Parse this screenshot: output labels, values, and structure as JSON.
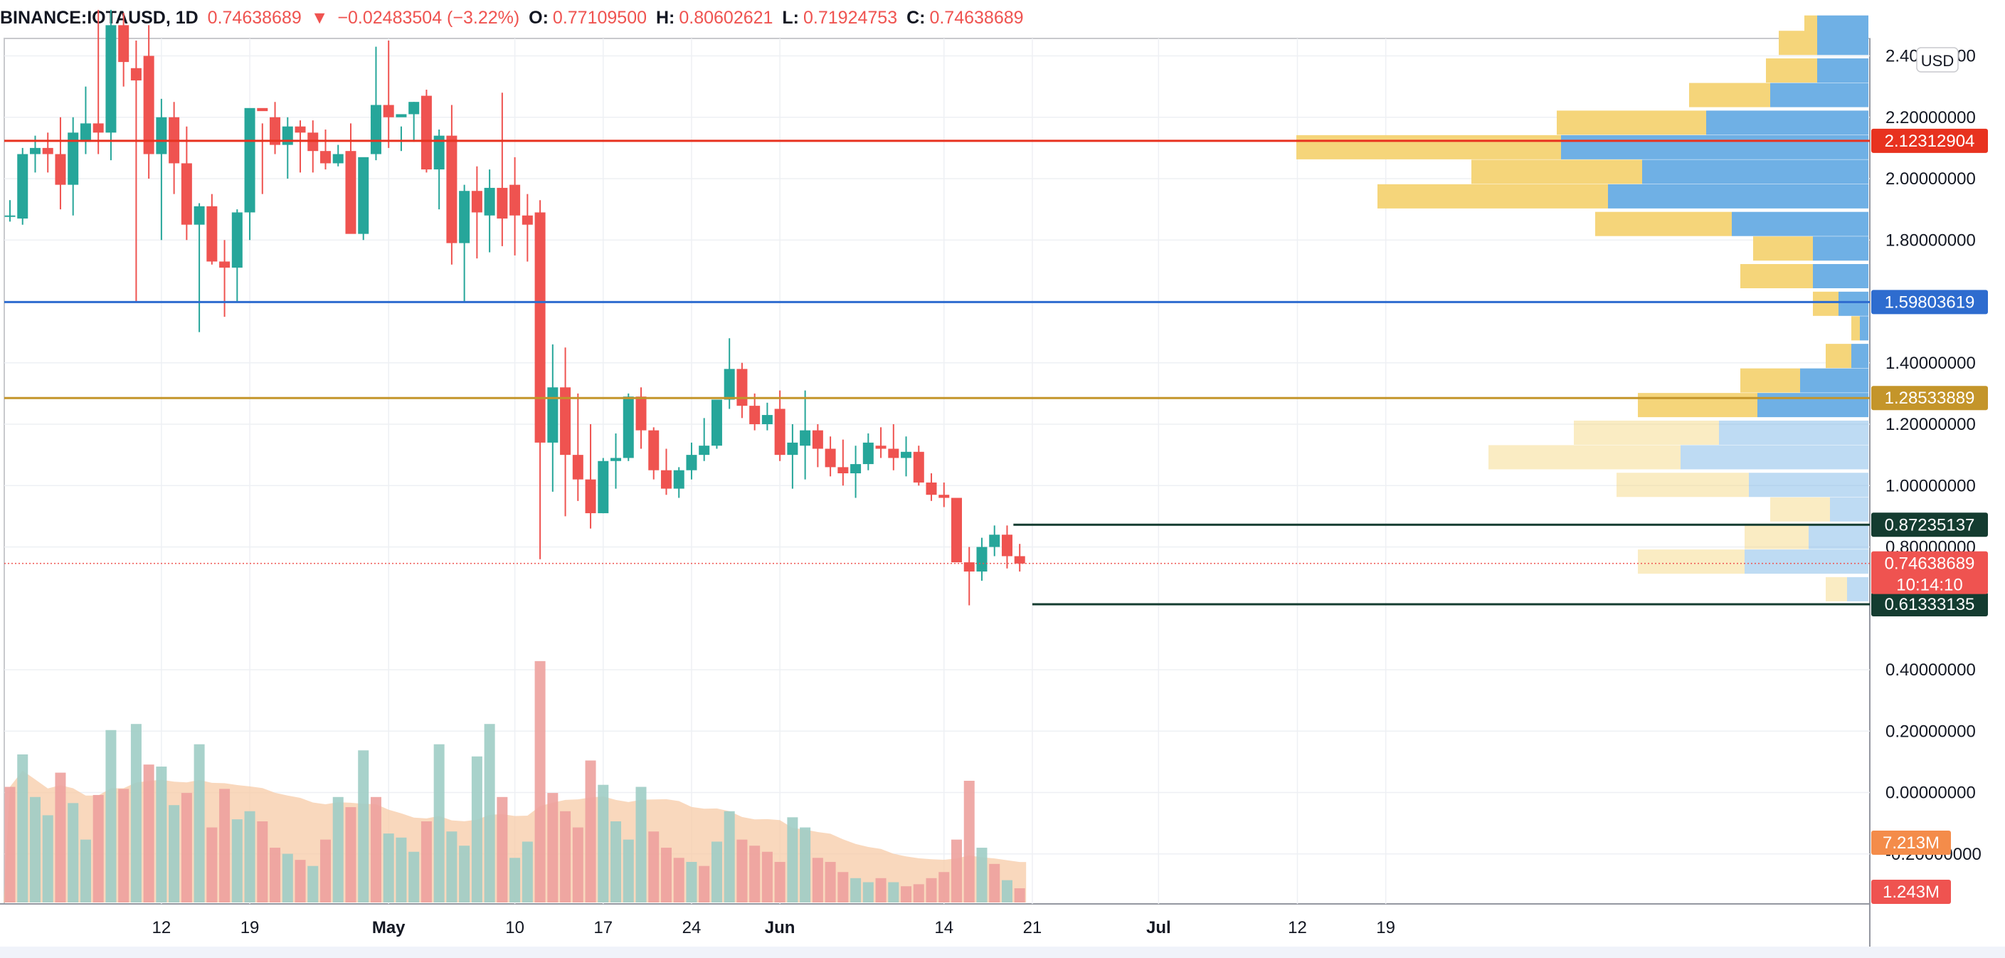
{
  "header": {
    "symbol": "BINANCE:IOTAUSD, 1D",
    "last": "0.74638689",
    "arrow": "▼",
    "change": "−0.02483504 (−3.22%)",
    "open_label": "O:",
    "open": "0.77109500",
    "high_label": "H:",
    "high": "0.80602621",
    "low_label": "L:",
    "low": "0.71924753",
    "close_label": "C:",
    "close": "0.74638689"
  },
  "colors": {
    "up": "#26a69a",
    "down": "#ef5350",
    "vol_up": "#9fcdc5",
    "vol_down": "#eda19d",
    "vol_ma": "#f7cba7",
    "vp_up": "#6fb0e5",
    "vp_down": "#f5d57a",
    "line_red": "#e8321f",
    "line_blue": "#2e6ccf",
    "line_gold": "#c4952a",
    "line_dark": "#143c30"
  },
  "chart_data": {
    "type": "candlestick",
    "currency_badge": "USD",
    "y_ticks": [
      "2.40000000",
      "2.20000000",
      "2.00000000",
      "1.80000000",
      "1.40000000",
      "1.20000000",
      "1.00000000",
      "0.80000000",
      "0.40000000",
      "0.20000000",
      "0.00000000",
      "-0.20000000"
    ],
    "y_tick_values": [
      2.4,
      2.2,
      2.0,
      1.8,
      1.4,
      1.2,
      1.0,
      0.8,
      0.4,
      0.2,
      0.0,
      -0.2
    ],
    "x_ticks": [
      {
        "label": "12",
        "day": 12
      },
      {
        "label": "19",
        "day": 19
      },
      {
        "label": "May",
        "day": 30
      },
      {
        "label": "10",
        "day": 40
      },
      {
        "label": "17",
        "day": 47
      },
      {
        "label": "24",
        "day": 54
      },
      {
        "label": "Jun",
        "day": 61
      },
      {
        "label": "14",
        "day": 74
      },
      {
        "label": "21",
        "day": 81
      },
      {
        "label": "Jul",
        "day": 91
      },
      {
        "label": "12",
        "day": 102
      },
      {
        "label": "19",
        "day": 109
      }
    ],
    "candles_ohlc": [
      [
        1.88,
        1.93,
        1.86,
        1.88
      ],
      [
        1.87,
        2.1,
        1.85,
        2.08
      ],
      [
        2.08,
        2.14,
        2.02,
        2.1
      ],
      [
        2.1,
        2.15,
        2.02,
        2.08
      ],
      [
        2.08,
        2.2,
        1.9,
        1.98
      ],
      [
        1.98,
        2.2,
        1.88,
        2.15
      ],
      [
        2.12,
        2.3,
        2.08,
        2.18
      ],
      [
        2.18,
        2.55,
        2.08,
        2.15
      ],
      [
        2.15,
        2.55,
        2.06,
        2.5
      ],
      [
        2.5,
        2.54,
        2.3,
        2.38
      ],
      [
        2.36,
        2.45,
        1.6,
        2.32
      ],
      [
        2.4,
        2.5,
        2.0,
        2.08
      ],
      [
        2.08,
        2.26,
        1.8,
        2.2
      ],
      [
        2.2,
        2.25,
        1.95,
        2.05
      ],
      [
        2.05,
        2.17,
        1.8,
        1.85
      ],
      [
        1.85,
        1.92,
        1.5,
        1.91
      ],
      [
        1.91,
        1.95,
        1.72,
        1.73
      ],
      [
        1.73,
        1.8,
        1.55,
        1.71
      ],
      [
        1.71,
        1.9,
        1.6,
        1.89
      ],
      [
        1.89,
        2.14,
        1.8,
        2.23
      ],
      [
        2.23,
        2.18,
        1.95,
        2.22
      ],
      [
        2.2,
        2.25,
        2.08,
        2.11
      ],
      [
        2.11,
        2.2,
        2.0,
        2.17
      ],
      [
        2.17,
        2.19,
        2.02,
        2.15
      ],
      [
        2.15,
        2.19,
        2.02,
        2.09
      ],
      [
        2.09,
        2.16,
        2.03,
        2.05
      ],
      [
        2.05,
        2.11,
        2.04,
        2.08
      ],
      [
        2.09,
        2.18,
        2.0,
        1.82
      ],
      [
        1.82,
        2.06,
        1.8,
        2.07
      ],
      [
        2.08,
        2.43,
        2.06,
        2.24
      ],
      [
        2.24,
        2.45,
        2.1,
        2.2
      ],
      [
        2.2,
        2.17,
        2.09,
        2.21
      ],
      [
        2.21,
        2.25,
        2.12,
        2.25
      ],
      [
        2.27,
        2.29,
        2.02,
        2.03
      ],
      [
        2.03,
        2.16,
        1.9,
        2.14
      ],
      [
        2.14,
        2.24,
        1.72,
        1.79
      ],
      [
        1.79,
        1.98,
        1.6,
        1.96
      ],
      [
        1.96,
        2.04,
        1.74,
        1.89
      ],
      [
        1.88,
        2.03,
        1.76,
        1.97
      ],
      [
        1.97,
        2.28,
        1.78,
        1.87
      ],
      [
        1.98,
        2.07,
        1.75,
        1.88
      ],
      [
        1.88,
        1.95,
        1.73,
        1.85
      ],
      [
        1.89,
        1.93,
        0.76,
        1.14
      ],
      [
        1.14,
        1.46,
        0.98,
        1.32
      ],
      [
        1.32,
        1.45,
        0.9,
        1.1
      ],
      [
        1.1,
        1.3,
        0.95,
        1.02
      ],
      [
        1.02,
        1.2,
        0.86,
        0.91
      ],
      [
        0.91,
        1.09,
        0.91,
        1.08
      ],
      [
        1.08,
        1.17,
        0.99,
        1.09
      ],
      [
        1.09,
        1.3,
        1.08,
        1.29
      ],
      [
        1.29,
        1.32,
        1.12,
        1.18
      ],
      [
        1.18,
        1.19,
        1.02,
        1.05
      ],
      [
        1.05,
        1.12,
        0.97,
        0.99
      ],
      [
        0.99,
        1.06,
        0.96,
        1.05
      ],
      [
        1.05,
        1.14,
        1.02,
        1.1
      ],
      [
        1.1,
        1.22,
        1.08,
        1.13
      ],
      [
        1.13,
        1.28,
        1.12,
        1.28
      ],
      [
        1.28,
        1.48,
        1.25,
        1.38
      ],
      [
        1.38,
        1.4,
        1.22,
        1.26
      ],
      [
        1.26,
        1.3,
        1.18,
        1.2
      ],
      [
        1.2,
        1.27,
        1.18,
        1.23
      ],
      [
        1.25,
        1.31,
        1.08,
        1.1
      ],
      [
        1.1,
        1.2,
        0.99,
        1.14
      ],
      [
        1.13,
        1.31,
        1.02,
        1.18
      ],
      [
        1.18,
        1.2,
        1.06,
        1.12
      ],
      [
        1.12,
        1.16,
        1.03,
        1.06
      ],
      [
        1.06,
        1.15,
        1.0,
        1.04
      ],
      [
        1.04,
        1.13,
        0.96,
        1.07
      ],
      [
        1.07,
        1.17,
        1.05,
        1.14
      ],
      [
        1.13,
        1.19,
        1.09,
        1.12
      ],
      [
        1.12,
        1.2,
        1.05,
        1.09
      ],
      [
        1.09,
        1.16,
        1.03,
        1.11
      ],
      [
        1.11,
        1.13,
        1.0,
        1.01
      ],
      [
        1.01,
        1.04,
        0.95,
        0.97
      ],
      [
        0.97,
        1.01,
        0.93,
        0.96
      ],
      [
        0.96,
        0.95,
        0.75,
        0.75
      ],
      [
        0.75,
        0.8,
        0.61,
        0.72
      ],
      [
        0.72,
        0.83,
        0.69,
        0.8
      ],
      [
        0.8,
        0.87,
        0.77,
        0.84
      ],
      [
        0.84,
        0.87,
        0.73,
        0.77
      ],
      [
        0.77,
        0.81,
        0.72,
        0.746
      ]
    ],
    "volume": [
      [
        57,
        "down"
      ],
      [
        73,
        "up"
      ],
      [
        52,
        "up"
      ],
      [
        43,
        "up"
      ],
      [
        64,
        "down"
      ],
      [
        49,
        "up"
      ],
      [
        31,
        "up"
      ],
      [
        53,
        "down"
      ],
      [
        85,
        "up"
      ],
      [
        56,
        "down"
      ],
      [
        88,
        "up"
      ],
      [
        68,
        "down"
      ],
      [
        67,
        "up"
      ],
      [
        48,
        "up"
      ],
      [
        54,
        "down"
      ],
      [
        78,
        "up"
      ],
      [
        37,
        "down"
      ],
      [
        56,
        "down"
      ],
      [
        41,
        "up"
      ],
      [
        45,
        "up"
      ],
      [
        40,
        "down"
      ],
      [
        27,
        "down"
      ],
      [
        24,
        "up"
      ],
      [
        21,
        "down"
      ],
      [
        18,
        "up"
      ],
      [
        31,
        "down"
      ],
      [
        52,
        "up"
      ],
      [
        47,
        "down"
      ],
      [
        75,
        "up"
      ],
      [
        52,
        "down"
      ],
      [
        34,
        "up"
      ],
      [
        32,
        "up"
      ],
      [
        25,
        "up"
      ],
      [
        40,
        "down"
      ],
      [
        78,
        "up"
      ],
      [
        35,
        "up"
      ],
      [
        28,
        "up"
      ],
      [
        72,
        "up"
      ],
      [
        88,
        "up"
      ],
      [
        52,
        "down"
      ],
      [
        22,
        "up"
      ],
      [
        30,
        "up"
      ],
      [
        119,
        "down"
      ],
      [
        54,
        "down"
      ],
      [
        45,
        "down"
      ],
      [
        37,
        "down"
      ],
      [
        70,
        "down"
      ],
      [
        58,
        "up"
      ],
      [
        40,
        "up"
      ],
      [
        31,
        "up"
      ],
      [
        57,
        "up"
      ],
      [
        35,
        "down"
      ],
      [
        27,
        "down"
      ],
      [
        22,
        "down"
      ],
      [
        20,
        "up"
      ],
      [
        18,
        "down"
      ],
      [
        30,
        "up"
      ],
      [
        45,
        "up"
      ],
      [
        31,
        "down"
      ],
      [
        28,
        "down"
      ],
      [
        25,
        "down"
      ],
      [
        20,
        "down"
      ],
      [
        42,
        "up"
      ],
      [
        37,
        "up"
      ],
      [
        22,
        "down"
      ],
      [
        20,
        "down"
      ],
      [
        15,
        "down"
      ],
      [
        12,
        "up"
      ],
      [
        10,
        "up"
      ],
      [
        12,
        "down"
      ],
      [
        10,
        "up"
      ],
      [
        8,
        "down"
      ],
      [
        9,
        "down"
      ],
      [
        12,
        "down"
      ],
      [
        15,
        "down"
      ],
      [
        31,
        "down"
      ],
      [
        60,
        "down"
      ],
      [
        27,
        "up"
      ],
      [
        19,
        "down"
      ],
      [
        11,
        "up"
      ],
      [
        7,
        "down"
      ]
    ],
    "volume_badges": [
      {
        "label": "7.213M",
        "color": "#f48c4a"
      },
      {
        "label": "1.243M",
        "color": "#ef5350"
      }
    ],
    "horizontal_lines": [
      {
        "price": 2.12312904,
        "label": "2.12312904",
        "color": "#e8321f",
        "x_start_day": 0
      },
      {
        "price": 1.59803619,
        "label": "1.59803619",
        "color": "#2e6ccf",
        "x_start_day": 0
      },
      {
        "price": 1.28533889,
        "label": "1.28533889",
        "color": "#c4952a",
        "x_start_day": 0
      },
      {
        "price": 0.87235137,
        "label": "0.87235137",
        "color": "#143c30",
        "x_start_day": 79.5
      },
      {
        "price": 0.61333135,
        "label": "0.61333135",
        "color": "#143c30",
        "x_start_day": 81
      }
    ],
    "last_price": {
      "price": 0.74638689,
      "label": "0.74638689",
      "countdown": "10:14:10"
    },
    "volume_profile": [
      {
        "price": 2.49,
        "up": 0.12,
        "down": 0.03
      },
      {
        "price": 2.44,
        "up": 0.12,
        "down": 0.09
      },
      {
        "price": 2.35,
        "up": 0.12,
        "down": 0.12
      },
      {
        "price": 2.27,
        "up": 0.23,
        "down": 0.19
      },
      {
        "price": 2.18,
        "up": 0.38,
        "down": 0.35
      },
      {
        "price": 2.1,
        "up": 0.72,
        "down": 0.62
      },
      {
        "price": 2.02,
        "up": 0.53,
        "down": 0.4
      },
      {
        "price": 1.94,
        "up": 0.61,
        "down": 0.54
      },
      {
        "price": 1.85,
        "up": 0.32,
        "down": 0.32
      },
      {
        "price": 1.77,
        "up": 0.13,
        "down": 0.14
      },
      {
        "price": 1.68,
        "up": 0.13,
        "down": 0.17
      },
      {
        "price": 1.59,
        "up": 0.07,
        "down": 0.06
      },
      {
        "price": 1.51,
        "up": 0.02,
        "down": 0.02
      },
      {
        "price": 1.42,
        "up": 0.04,
        "down": 0.06
      },
      {
        "price": 1.34,
        "up": 0.16,
        "down": 0.14
      },
      {
        "price": 1.26,
        "up": 0.26,
        "down": 0.28
      },
      {
        "price": 1.17,
        "up": 0.35,
        "down": 0.34
      },
      {
        "price": 1.09,
        "up": 0.44,
        "down": 0.45
      },
      {
        "price": 1.0,
        "up": 0.28,
        "down": 0.31
      },
      {
        "price": 0.92,
        "up": 0.09,
        "down": 0.14
      },
      {
        "price": 0.83,
        "up": 0.14,
        "down": 0.15
      },
      {
        "price": 0.75,
        "up": 0.29,
        "down": 0.25
      },
      {
        "price": 0.66,
        "up": 0.05,
        "down": 0.05
      }
    ],
    "grid": true
  }
}
